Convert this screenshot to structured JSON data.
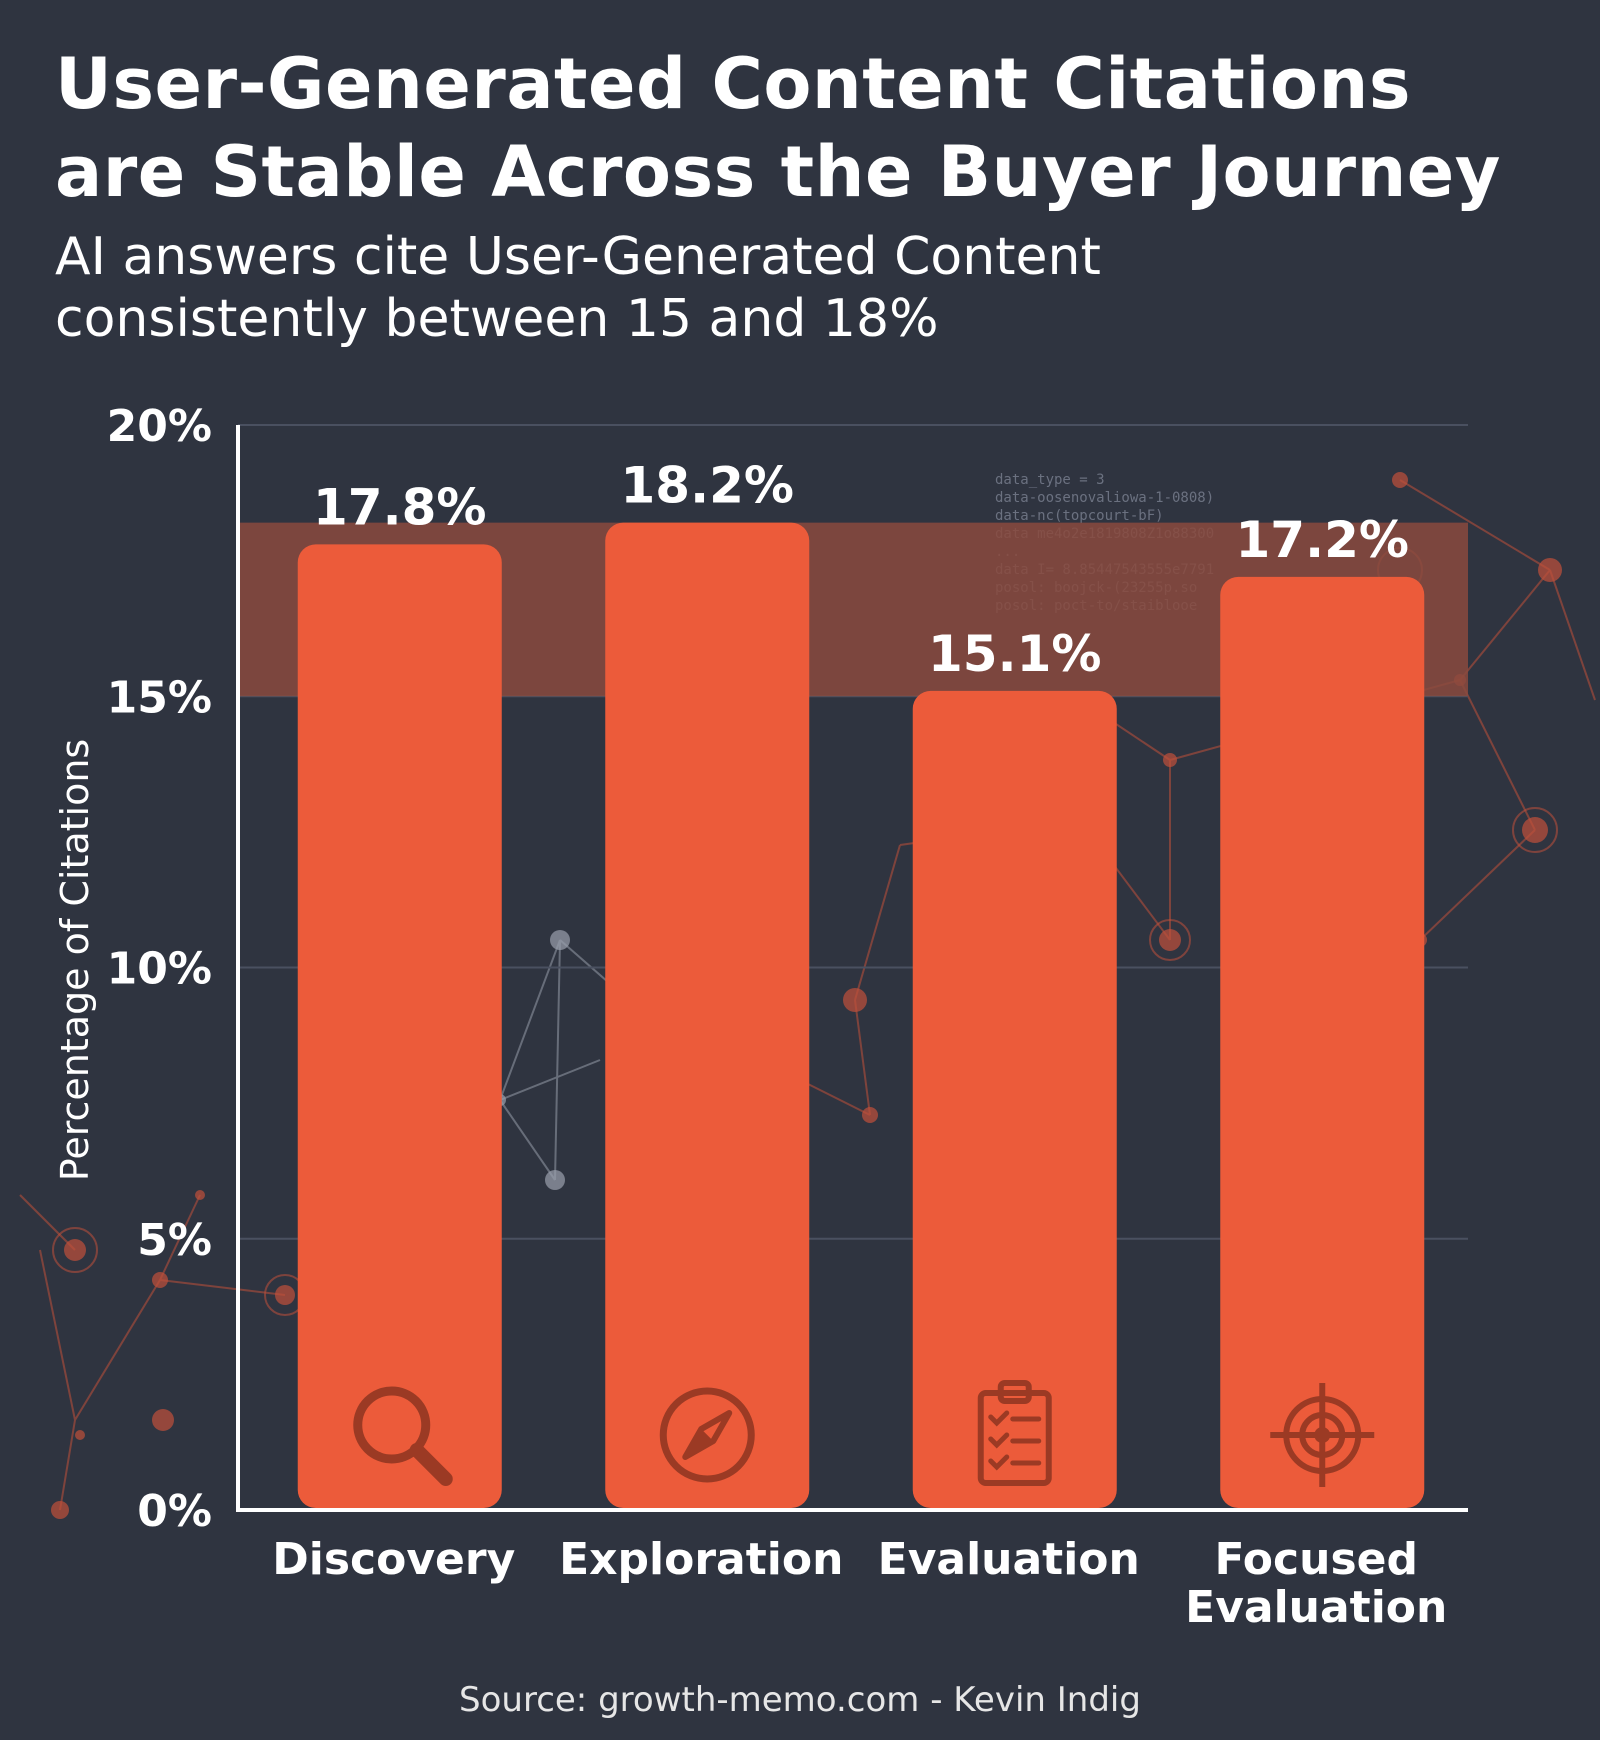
{
  "title_line1": "User-Generated Content Citations",
  "title_line2": "are Stable Across the Buyer Journey",
  "subtitle_line1": "AI answers cite User-Generated Content",
  "subtitle_line2": "consistently between 15 and 18%",
  "source": "Source: growth-memo.com - Kevin Indig",
  "colors": {
    "background": "#2f3440",
    "bar": "#ec5b3a",
    "band": "#8a4a3e",
    "text": "#ffffff",
    "grid": "#4a5060"
  },
  "chart_data": {
    "type": "bar",
    "categories": [
      "Discovery",
      "Exploration",
      "Evaluation",
      "Focused Evaluation"
    ],
    "category_lines": [
      [
        "Discovery"
      ],
      [
        "Exploration"
      ],
      [
        "Evaluation"
      ],
      [
        "Focused",
        "Evaluation"
      ]
    ],
    "values": [
      17.8,
      18.2,
      15.1,
      17.2
    ],
    "value_labels": [
      "17.8%",
      "18.2%",
      "15.1%",
      "17.2%"
    ],
    "icons": [
      "magnifier-icon",
      "compass-icon",
      "clipboard-checklist-icon",
      "target-icon"
    ],
    "ylabel": "Percentage of Citations",
    "ylim": [
      0,
      20
    ],
    "yticks": [
      0,
      5,
      10,
      15,
      20
    ],
    "ytick_labels": [
      "0%",
      "5%",
      "10%",
      "15%",
      "20%"
    ],
    "highlight_band": [
      15,
      18.2
    ],
    "grid": true
  },
  "background_code_snippets": [
    "data_type = 3",
    "data-oosenovaliowa-1-0808)",
    "data-nc(topcourt-bF)",
    "data me4o2e1819808Z1o88300",
    "...",
    "data I= 8.85447543555e7791",
    "posol: boojck-(23255p.so",
    "posol: poct-to/staiblooe"
  ]
}
